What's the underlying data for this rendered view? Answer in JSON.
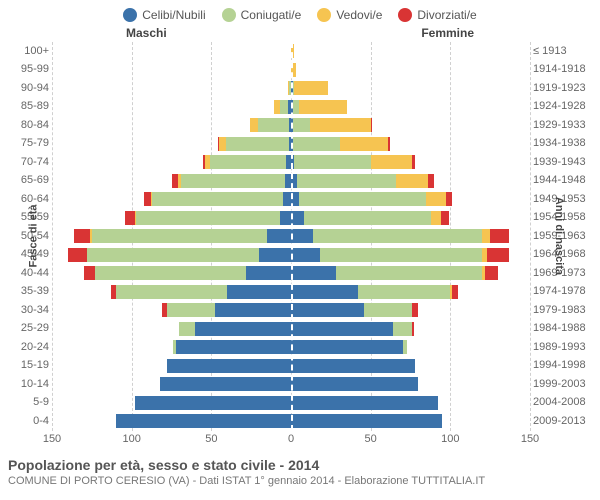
{
  "chart": {
    "type": "population-pyramid",
    "background_color": "#ffffff",
    "grid_color": "#d0d0d0",
    "legend": [
      {
        "label": "Celibi/Nubili",
        "color": "#3b72aa"
      },
      {
        "label": "Coniugati/e",
        "color": "#b5d294"
      },
      {
        "label": "Vedovi/e",
        "color": "#f6c451"
      },
      {
        "label": "Divorziati/e",
        "color": "#d93434"
      }
    ],
    "header_left": "Maschi",
    "header_right": "Femmine",
    "ylabel_left": "Fasce di età",
    "ylabel_right": "Anni di nascita",
    "xmax": 150,
    "xticks": [
      150,
      100,
      50,
      0,
      50,
      100,
      150
    ],
    "age_labels": [
      "100+",
      "95-99",
      "90-94",
      "85-89",
      "80-84",
      "75-79",
      "70-74",
      "65-69",
      "60-64",
      "55-59",
      "50-54",
      "45-49",
      "40-44",
      "35-39",
      "30-34",
      "25-29",
      "20-24",
      "15-19",
      "10-14",
      "5-9",
      "0-4"
    ],
    "birth_labels": [
      "≤ 1913",
      "1914-1918",
      "1919-1923",
      "1924-1928",
      "1929-1933",
      "1934-1938",
      "1939-1943",
      "1944-1948",
      "1949-1953",
      "1954-1958",
      "1959-1963",
      "1964-1968",
      "1969-1973",
      "1974-1978",
      "1979-1983",
      "1984-1988",
      "1989-1993",
      "1994-1998",
      "1999-2003",
      "2004-2008",
      "2009-2013"
    ],
    "rows": [
      {
        "m": [
          0,
          0,
          0,
          0
        ],
        "f": [
          0,
          0,
          2,
          0
        ]
      },
      {
        "m": [
          0,
          0,
          0,
          0
        ],
        "f": [
          0,
          0,
          3,
          0
        ]
      },
      {
        "m": [
          0,
          1,
          1,
          0
        ],
        "f": [
          1,
          1,
          21,
          0
        ]
      },
      {
        "m": [
          2,
          5,
          4,
          0
        ],
        "f": [
          1,
          4,
          30,
          0
        ]
      },
      {
        "m": [
          1,
          20,
          5,
          0
        ],
        "f": [
          1,
          11,
          38,
          1
        ]
      },
      {
        "m": [
          1,
          40,
          4,
          1
        ],
        "f": [
          1,
          30,
          30,
          1
        ]
      },
      {
        "m": [
          3,
          48,
          3,
          1
        ],
        "f": [
          2,
          48,
          26,
          2
        ]
      },
      {
        "m": [
          4,
          65,
          2,
          4
        ],
        "f": [
          4,
          62,
          20,
          4
        ]
      },
      {
        "m": [
          5,
          82,
          1,
          4
        ],
        "f": [
          5,
          80,
          12,
          4
        ]
      },
      {
        "m": [
          7,
          90,
          1,
          6
        ],
        "f": [
          8,
          80,
          6,
          5
        ]
      },
      {
        "m": [
          15,
          110,
          1,
          10
        ],
        "f": [
          14,
          106,
          5,
          12
        ]
      },
      {
        "m": [
          20,
          108,
          0,
          12
        ],
        "f": [
          18,
          102,
          3,
          14
        ]
      },
      {
        "m": [
          28,
          95,
          0,
          7
        ],
        "f": [
          28,
          92,
          2,
          8
        ]
      },
      {
        "m": [
          40,
          70,
          0,
          3
        ],
        "f": [
          42,
          58,
          1,
          4
        ]
      },
      {
        "m": [
          48,
          30,
          0,
          3
        ],
        "f": [
          46,
          30,
          0,
          4
        ]
      },
      {
        "m": [
          60,
          10,
          0,
          0
        ],
        "f": [
          64,
          12,
          0,
          1
        ]
      },
      {
        "m": [
          72,
          2,
          0,
          0
        ],
        "f": [
          70,
          3,
          0,
          0
        ]
      },
      {
        "m": [
          78,
          0,
          0,
          0
        ],
        "f": [
          78,
          0,
          0,
          0
        ]
      },
      {
        "m": [
          82,
          0,
          0,
          0
        ],
        "f": [
          80,
          0,
          0,
          0
        ]
      },
      {
        "m": [
          98,
          0,
          0,
          0
        ],
        "f": [
          92,
          0,
          0,
          0
        ]
      },
      {
        "m": [
          110,
          0,
          0,
          0
        ],
        "f": [
          95,
          0,
          0,
          0
        ]
      }
    ],
    "footer_title": "Popolazione per età, sesso e stato civile - 2014",
    "footer_sub": "COMUNE DI PORTO CERESIO (VA) - Dati ISTAT 1° gennaio 2014 - Elaborazione TUTTITALIA.IT"
  }
}
